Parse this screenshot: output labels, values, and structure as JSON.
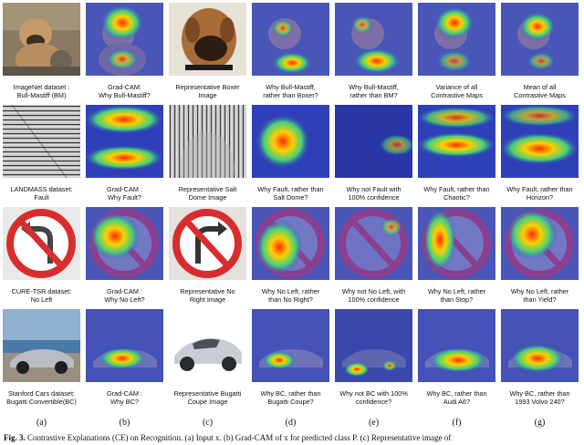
{
  "rows": [
    {
      "captions": [
        "ImageNet dataset :\nBull-Mastiff (BM)",
        "Grad-CAM:\nWhy Bull-Mastiff?",
        "Representative Boxer\nImage",
        "Why Bull-Mastiff,\nrather than Boxer?",
        "Why Bull-Mastiff,\nrather than BM?",
        "Variance of all\nContrastive Maps",
        "Mean of all\nContrastive Maps"
      ]
    },
    {
      "captions": [
        "LANDMASS dataset:\nFault",
        "Grad-CAM :\nWhy Fault?",
        "Representative Salt\nDome Image",
        "Why Fault, rather than\nSalt Dome?",
        "Why not Fault with\n100% confidence",
        "Why Fault, rather than\nChaotic?",
        "Why Fault, rather than\nHorizon?"
      ]
    },
    {
      "captions": [
        "CURE-TSR dataset:\nNo Left",
        "Grad-CAM :\nWhy No Left?",
        "Representative No\nRight Image",
        "Why No Left, rather\nthan No Right?",
        "Why not No Left, with\n100% confidence",
        "Why No Left, rather\nthan Stop?",
        "Why No Left, rather\nthan Yield?"
      ]
    },
    {
      "captions": [
        "Stanford Cars dataset:\nBugatti Convertible(BC)",
        "Grad-CAM :\nWhy BC?",
        "Representative Bugatti\nCoupe Image",
        "Why BC, rather than\nBugatti Coupe?",
        "Why not BC with 100%\nconfidence?",
        "Why BC, rather than\nAudi A6?",
        "Why BC, rather than\n1993 Volvo 240?"
      ]
    }
  ],
  "column_labels": [
    "(a)",
    "(b)",
    "(c)",
    "(d)",
    "(e)",
    "(f)",
    "(g)"
  ],
  "figure_caption": {
    "label": "Fig. 3.",
    "text": " Contrastive Explanations (CE) on Recognition. (a) Input x. (b) Grad-CAM of x for predicted class P. (c) Representative image of"
  }
}
